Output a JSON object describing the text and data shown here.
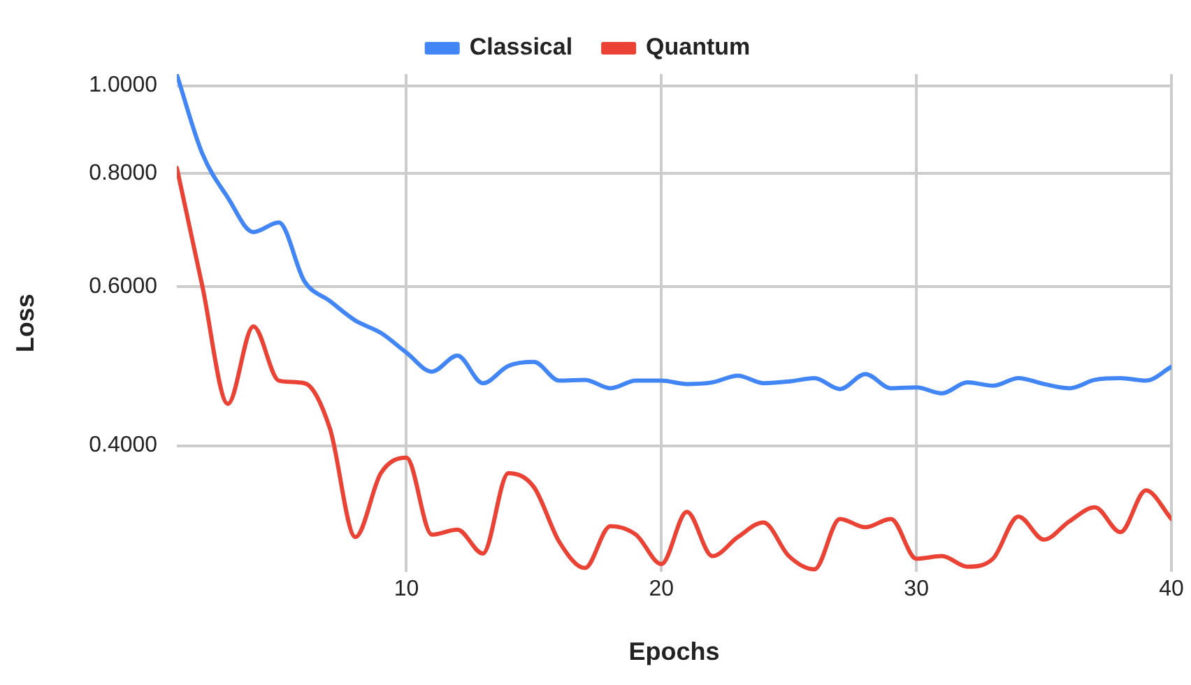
{
  "chart_data": {
    "type": "line",
    "xlabel": "Epochs",
    "ylabel": "Loss",
    "x": [
      1,
      2,
      3,
      4,
      5,
      6,
      7,
      8,
      9,
      10,
      11,
      12,
      13,
      14,
      15,
      16,
      17,
      18,
      19,
      20,
      21,
      22,
      23,
      24,
      25,
      26,
      27,
      28,
      29,
      30,
      31,
      32,
      33,
      34,
      35,
      36,
      37,
      38,
      39,
      40
    ],
    "series": [
      {
        "name": "Classical",
        "color": "#4285f4",
        "values": [
          1.028,
          0.841,
          0.752,
          0.689,
          0.706,
          0.608,
          0.578,
          0.55,
          0.533,
          0.507,
          0.483,
          0.503,
          0.469,
          0.49,
          0.495,
          0.472,
          0.473,
          0.463,
          0.472,
          0.472,
          0.468,
          0.47,
          0.478,
          0.469,
          0.471,
          0.475,
          0.462,
          0.48,
          0.463,
          0.464,
          0.457,
          0.47,
          0.466,
          0.475,
          0.468,
          0.463,
          0.473,
          0.475,
          0.472,
          0.489
        ]
      },
      {
        "name": "Quantum",
        "color": "#ea4335",
        "values": [
          0.811,
          0.6,
          0.445,
          0.542,
          0.472,
          0.469,
          0.418,
          0.317,
          0.373,
          0.388,
          0.319,
          0.323,
          0.304,
          0.373,
          0.36,
          0.313,
          0.293,
          0.326,
          0.319,
          0.296,
          0.338,
          0.302,
          0.317,
          0.329,
          0.302,
          0.292,
          0.332,
          0.325,
          0.332,
          0.3,
          0.302,
          0.294,
          0.3,
          0.334,
          0.315,
          0.33,
          0.342,
          0.321,
          0.357,
          0.332
        ]
      }
    ],
    "xlim": [
      1,
      40
    ],
    "xticks": [
      10,
      20,
      30,
      40
    ],
    "ylim": [
      0.29,
      1.03
    ],
    "yticks": [
      {
        "value": 0.4,
        "label": "0.4000"
      },
      {
        "value": 0.6,
        "label": "0.6000"
      },
      {
        "value": 0.8,
        "label": "0.8000"
      },
      {
        "value": 1.0,
        "label": "1.0000"
      }
    ],
    "log": "y",
    "grid": true,
    "legend": "top",
    "marker": "none",
    "line_style": "solid"
  }
}
